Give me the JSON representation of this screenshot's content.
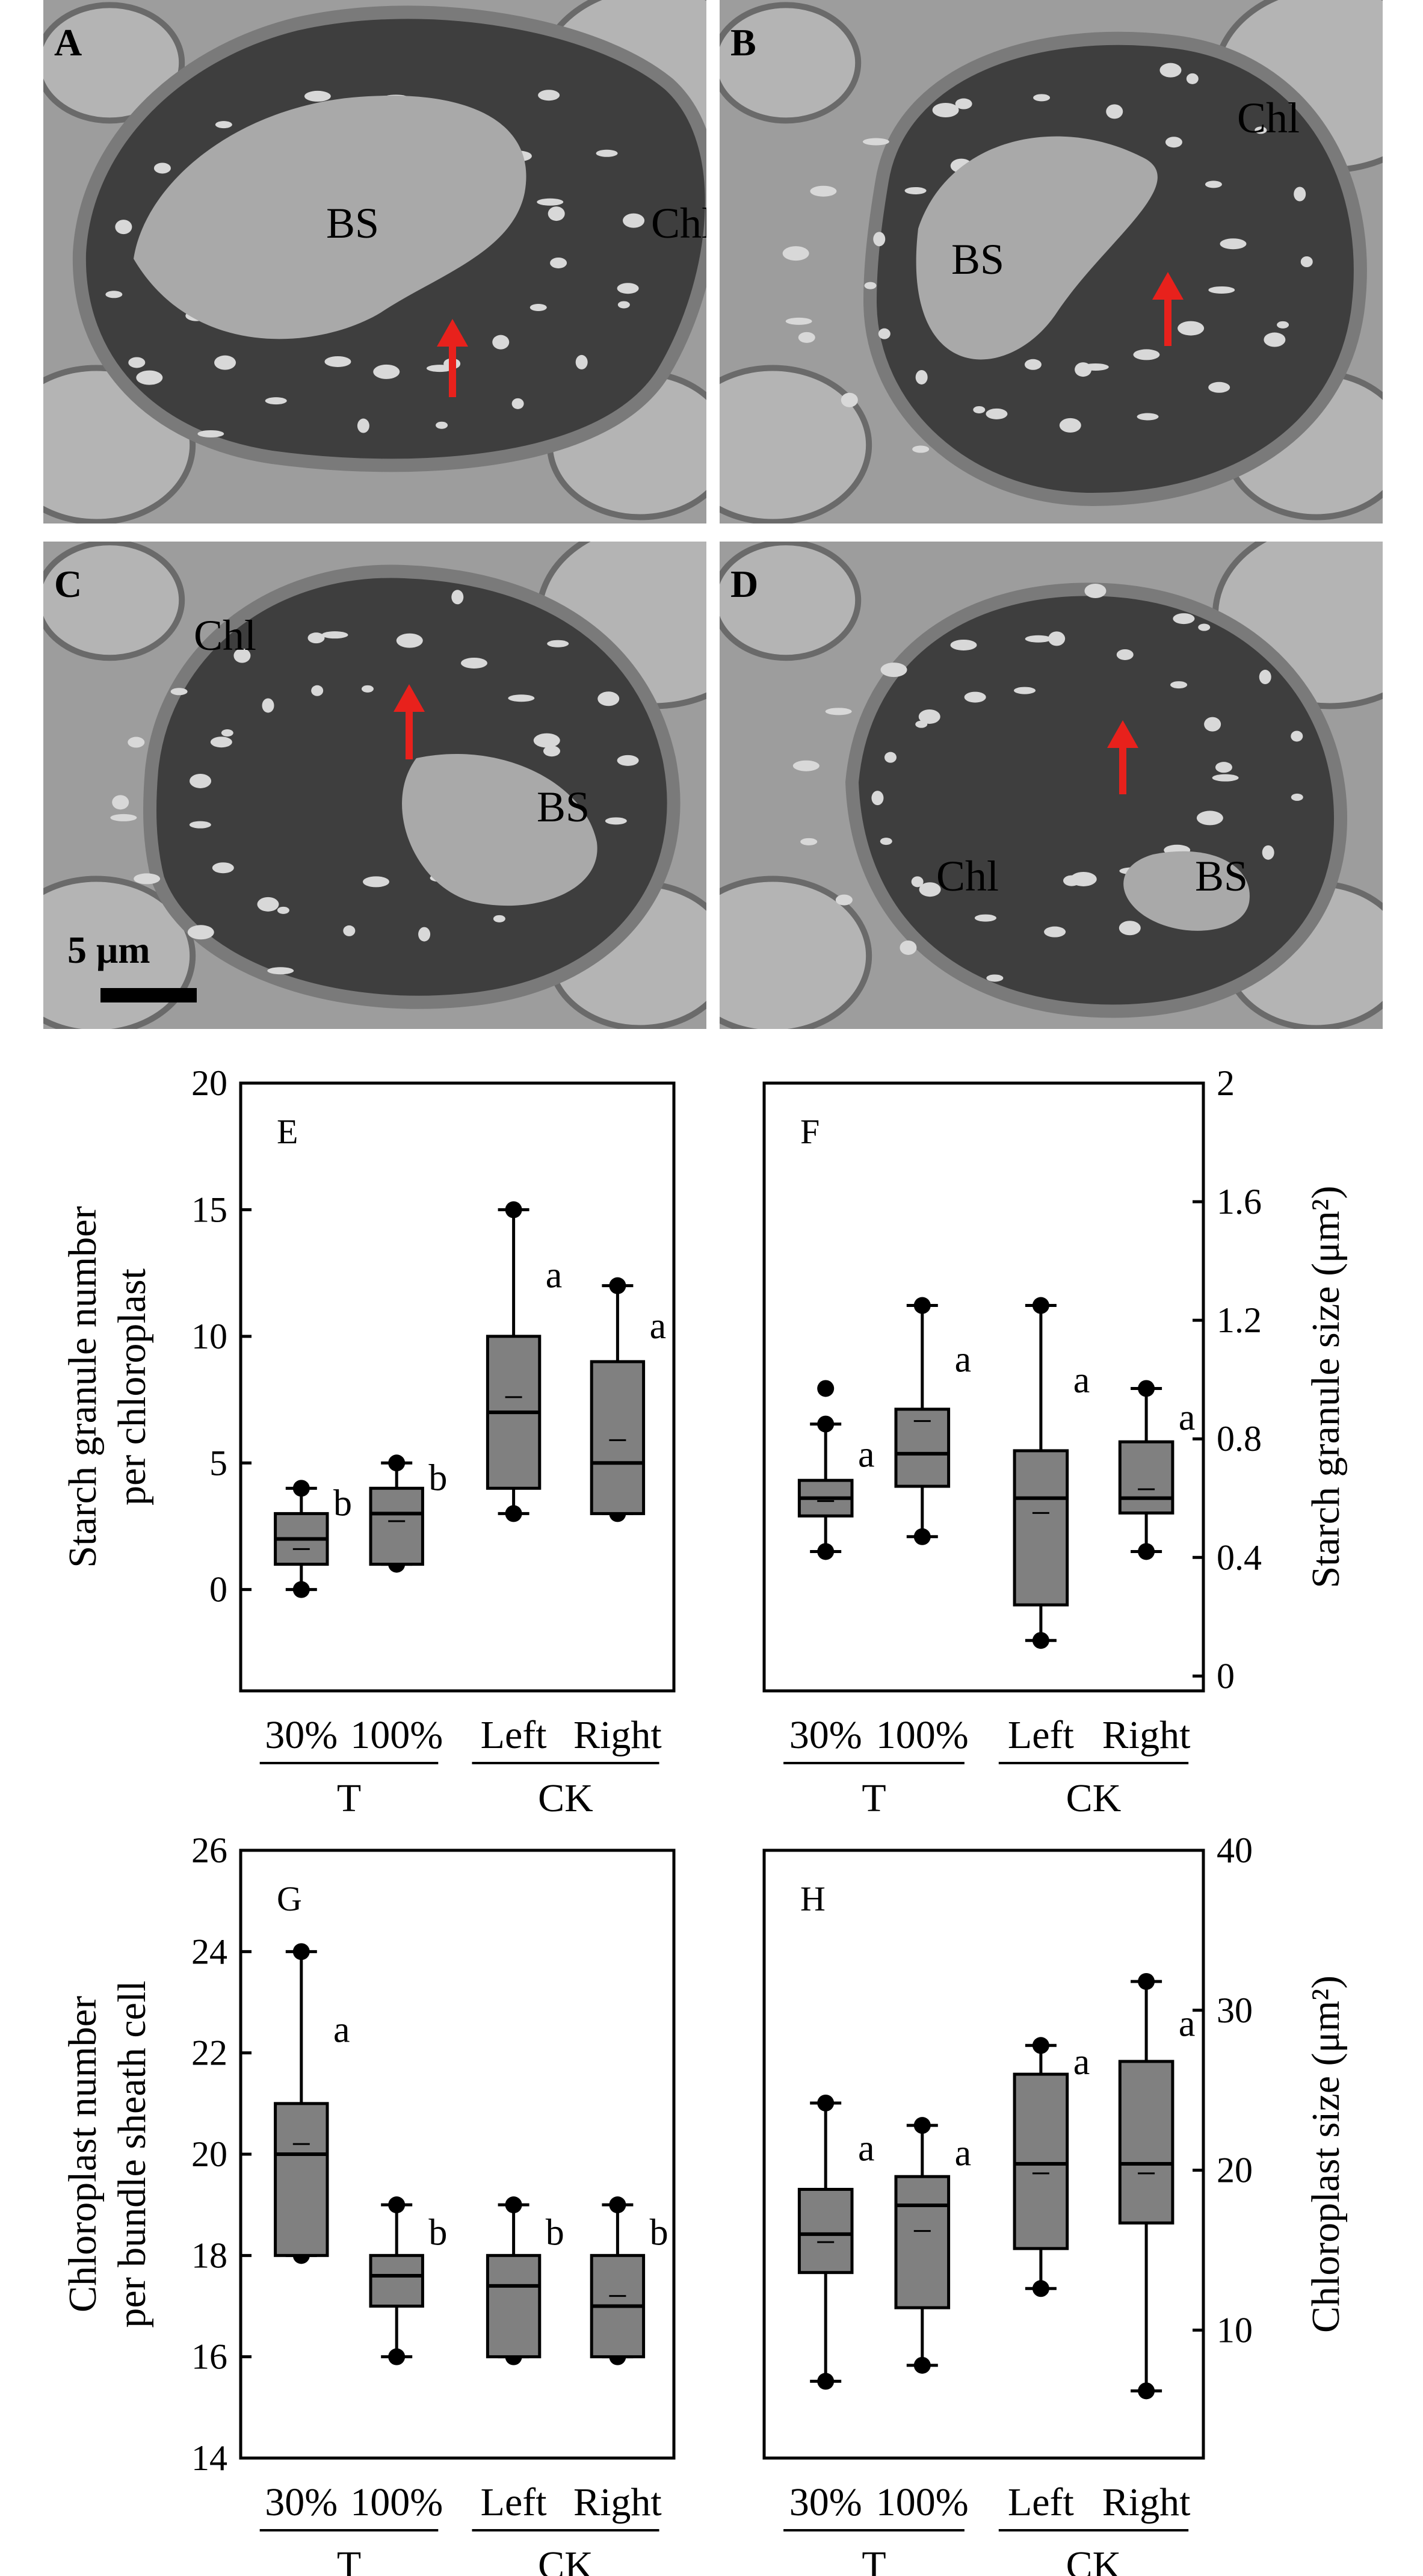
{
  "micrographs": [
    {
      "letter": "A",
      "labels": [
        "BS",
        "Chl"
      ]
    },
    {
      "letter": "B",
      "labels": [
        "BS",
        "Chl"
      ]
    },
    {
      "letter": "C",
      "labels": [
        "Chl",
        "BS"
      ],
      "scale_bar": "5 μm"
    },
    {
      "letter": "D",
      "labels": [
        "Chl",
        "BS"
      ]
    }
  ],
  "chart_data": [
    {
      "type": "box",
      "panel": "E",
      "ylabel": [
        "Starch granule number",
        "per chloroplast"
      ],
      "ylim": [
        -4,
        20
      ],
      "yticks": [
        0,
        5,
        10,
        15,
        20
      ],
      "ytick_labels": [
        "0",
        "5",
        "10",
        "15",
        "20"
      ],
      "axis_side": "left",
      "categories": [
        "30%",
        "100%",
        "Left",
        "Right"
      ],
      "groups": [
        {
          "label": "T",
          "span": [
            0,
            1
          ]
        },
        {
          "label": "CK",
          "span": [
            2,
            3
          ]
        }
      ],
      "boxes": [
        {
          "min": 0,
          "q1": 1,
          "median": 2,
          "q3": 3,
          "max": 4,
          "mean": 1.6,
          "letter": "b"
        },
        {
          "min": 1,
          "q1": 1,
          "median": 3,
          "q3": 4,
          "max": 5,
          "mean": 2.7,
          "letter": "b"
        },
        {
          "min": 3,
          "q1": 4,
          "median": 7,
          "q3": 10,
          "max": 15,
          "mean": 7.6,
          "letter": "a"
        },
        {
          "min": 3,
          "q1": 3,
          "median": 5,
          "q3": 9,
          "max": 12,
          "mean": 5.9,
          "letter": "a"
        }
      ]
    },
    {
      "type": "box",
      "panel": "F",
      "ylabel": [
        "Starch granule size (μm²)"
      ],
      "ylim": [
        -0.05,
        2
      ],
      "yticks": [
        0,
        0.4,
        0.8,
        1.2,
        1.6,
        2
      ],
      "ytick_labels": [
        "0",
        "0.4",
        "0.8",
        "1.2",
        "1.6",
        "2"
      ],
      "axis_side": "right",
      "categories": [
        "30%",
        "100%",
        "Left",
        "Right"
      ],
      "groups": [
        {
          "label": "T",
          "span": [
            0,
            1
          ]
        },
        {
          "label": "CK",
          "span": [
            2,
            3
          ]
        }
      ],
      "boxes": [
        {
          "min": 0.42,
          "q1": 0.54,
          "median": 0.6,
          "q3": 0.66,
          "max": 0.85,
          "mean": 0.59,
          "outlier": 0.97,
          "letter": "a"
        },
        {
          "min": 0.47,
          "q1": 0.64,
          "median": 0.75,
          "q3": 0.9,
          "max": 1.25,
          "mean": 0.86,
          "letter": "a"
        },
        {
          "min": 0.12,
          "q1": 0.24,
          "median": 0.6,
          "q3": 0.76,
          "max": 1.25,
          "mean": 0.55,
          "letter": "a"
        },
        {
          "min": 0.42,
          "q1": 0.55,
          "median": 0.6,
          "q3": 0.79,
          "max": 0.97,
          "mean": 0.63,
          "letter": "a"
        }
      ]
    },
    {
      "type": "box",
      "panel": "G",
      "ylabel": [
        "Chloroplast number",
        "per bundle sheath cell"
      ],
      "ylim": [
        14,
        26
      ],
      "yticks": [
        14,
        16,
        18,
        20,
        22,
        24,
        26
      ],
      "ytick_labels": [
        "14",
        "16",
        "18",
        "20",
        "22",
        "24",
        "26"
      ],
      "axis_side": "left",
      "categories": [
        "30%",
        "100%",
        "Left",
        "Right"
      ],
      "groups": [
        {
          "label": "T",
          "span": [
            0,
            1
          ]
        },
        {
          "label": "CK",
          "span": [
            2,
            3
          ]
        }
      ],
      "boxes": [
        {
          "min": 18,
          "q1": 18,
          "median": 20,
          "q3": 21,
          "max": 24,
          "mean": 20.2,
          "letter": "a"
        },
        {
          "min": 16,
          "q1": 17,
          "median": 17.6,
          "q3": 18,
          "max": 19,
          "mean": 17.6,
          "letter": "b"
        },
        {
          "min": 16,
          "q1": 16,
          "median": 17.4,
          "q3": 18,
          "max": 19,
          "mean": 17.4,
          "letter": "b"
        },
        {
          "min": 16,
          "q1": 16,
          "median": 17,
          "q3": 18,
          "max": 19,
          "mean": 17.2,
          "letter": "b"
        }
      ]
    },
    {
      "type": "box",
      "panel": "H",
      "ylabel": [
        "Chloroplast size (μm²)"
      ],
      "ylim": [
        2,
        40
      ],
      "yticks": [
        10,
        20,
        30,
        40
      ],
      "ytick_labels": [
        "10",
        "20",
        "30",
        "40"
      ],
      "axis_side": "right",
      "categories": [
        "30%",
        "100%",
        "Left",
        "Right"
      ],
      "groups": [
        {
          "label": "T",
          "span": [
            0,
            1
          ]
        },
        {
          "label": "CK",
          "span": [
            2,
            3
          ]
        }
      ],
      "boxes": [
        {
          "min": 6.8,
          "q1": 13.6,
          "median": 16,
          "q3": 18.8,
          "max": 24.2,
          "mean": 15.5,
          "letter": "a"
        },
        {
          "min": 7.8,
          "q1": 11.4,
          "median": 17.8,
          "q3": 19.6,
          "max": 22.8,
          "mean": 16.2,
          "letter": "a"
        },
        {
          "min": 12.6,
          "q1": 15.1,
          "median": 20.4,
          "q3": 26,
          "max": 27.8,
          "mean": 19.8,
          "letter": "a"
        },
        {
          "min": 6.2,
          "q1": 16.7,
          "median": 20.4,
          "q3": 26.8,
          "max": 31.8,
          "mean": 19.8,
          "letter": "a"
        }
      ]
    }
  ]
}
